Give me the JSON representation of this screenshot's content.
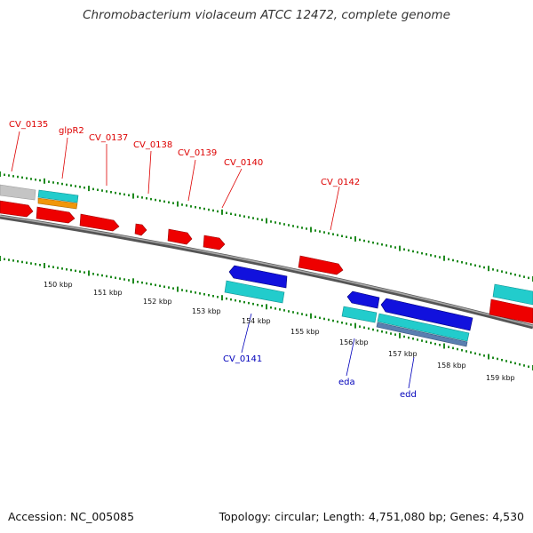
{
  "header": {
    "title": "Chromobacterium violaceum ATCC 12472, complete genome"
  },
  "footer": {
    "accession": "Accession: NC_005085",
    "summary": "Topology: circular; Length: 4,751,080 bp; Genes: 4,530"
  },
  "colors": {
    "forward_cds": "#ee0000",
    "reverse_cds": "#1111dd",
    "rna_feature": "#22cccc",
    "orange_feature": "#f0960a",
    "gray_feature": "#c0c0c0",
    "backbone": "#808080",
    "tick": "#1f8a1f",
    "forward_label": "#dd0000",
    "reverse_label": "#0000bb"
  },
  "forward_labels": [
    "CV_0135",
    "glpR2",
    "CV_0137",
    "CV_0138",
    "CV_0139",
    "CV_0140",
    "CV_0142"
  ],
  "reverse_labels": [
    "CV_0141",
    "eda",
    "edd"
  ],
  "scale_labels": [
    "150 kbp",
    "151 kbp",
    "152 kbp",
    "153 kbp",
    "154 kbp",
    "155 kbp",
    "156 kbp",
    "157 kbp",
    "158 kbp",
    "159 kbp"
  ]
}
